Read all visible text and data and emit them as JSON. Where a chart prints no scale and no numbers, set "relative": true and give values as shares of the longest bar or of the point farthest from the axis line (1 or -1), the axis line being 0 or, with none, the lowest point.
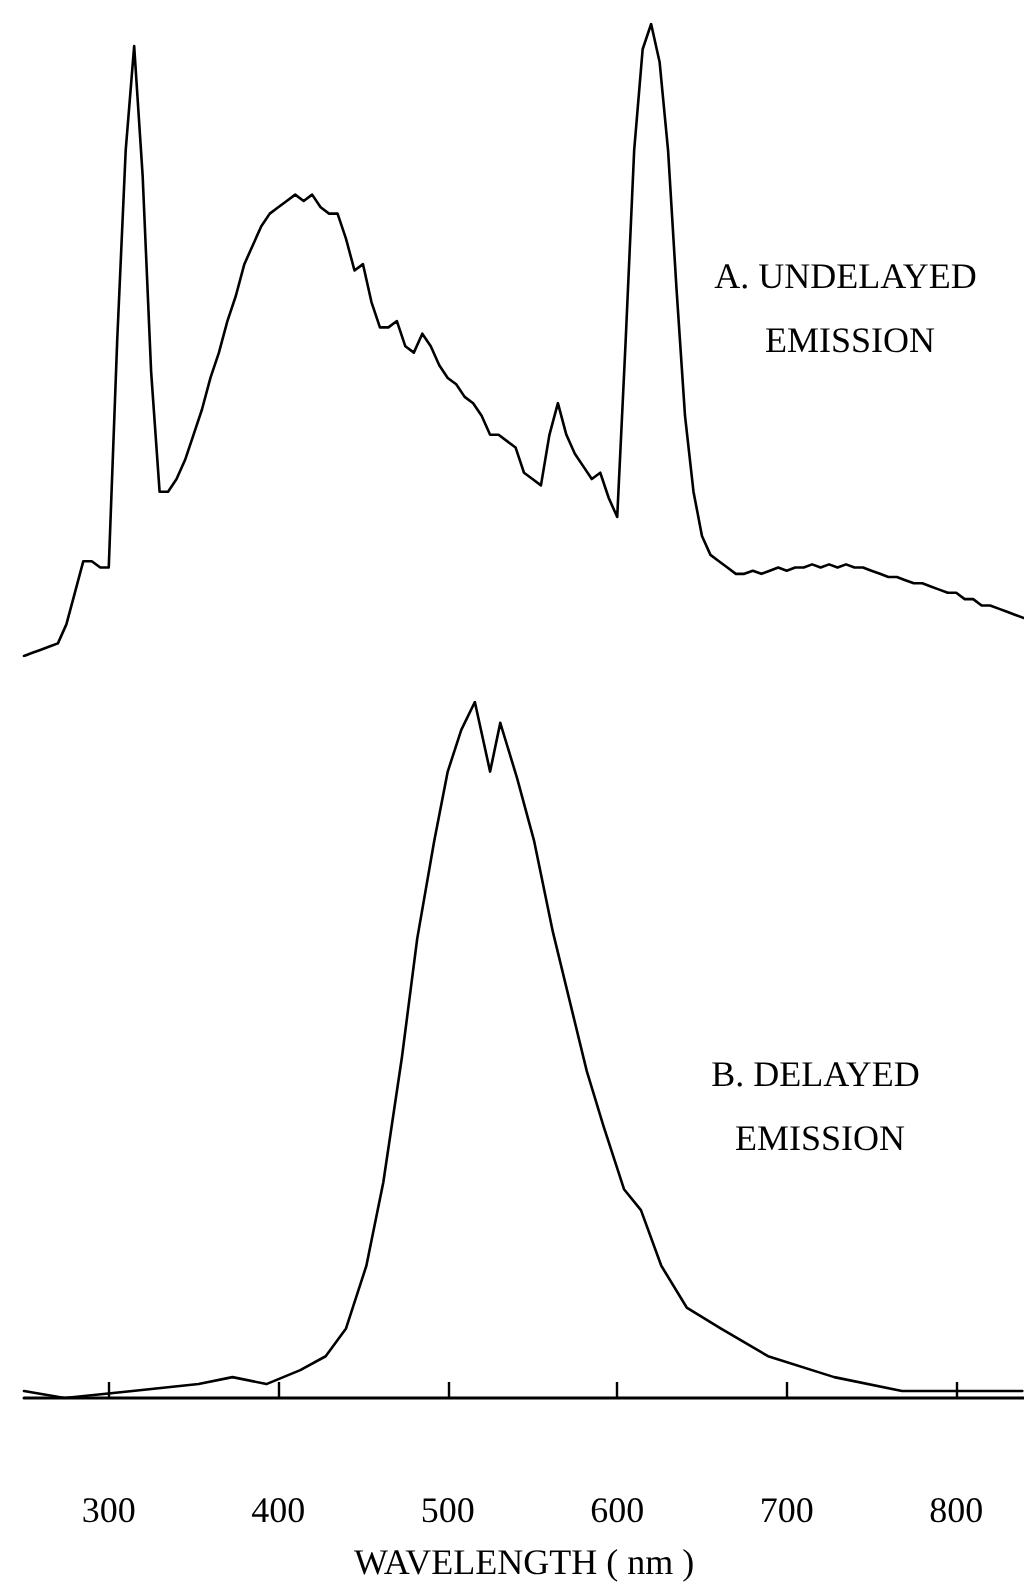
{
  "chart_data": [
    {
      "type": "line",
      "relative": true,
      "tick_labels": false,
      "marker": "none",
      "line_style": "solid",
      "annotations": [
        "A. UNDELAYED EMISSION"
      ],
      "categories": [
        null,
        null,
        null,
        null,
        null,
        null,
        null,
        null,
        null,
        null,
        null,
        null,
        null,
        null,
        null,
        null,
        null,
        null,
        null,
        null,
        null,
        null,
        null,
        null,
        null,
        null,
        null,
        null,
        null,
        null,
        null,
        null,
        null,
        null,
        null,
        null,
        null,
        null,
        null,
        null,
        null,
        null,
        null,
        null,
        null,
        null,
        null,
        null,
        null,
        null,
        null,
        null,
        null,
        null,
        null,
        null,
        null,
        null,
        null,
        null,
        null,
        null,
        null,
        null,
        null,
        null,
        null,
        null,
        null,
        null,
        null,
        null,
        null,
        null,
        null,
        null,
        null,
        null,
        null,
        null,
        null,
        null,
        null,
        null,
        null,
        null,
        null,
        null,
        null,
        null,
        null,
        null,
        null,
        null,
        null,
        null,
        null,
        null,
        null,
        null,
        null,
        null,
        null,
        null,
        null,
        null,
        null,
        null,
        null,
        null,
        null,
        null,
        null,
        null,
        null,
        null,
        null,
        null,
        null
      ],
      "series": [
        {
          "color": "#000000",
          "values": [
            0,
            0.005,
            0.01,
            0.015,
            0.02,
            0.05,
            0.1,
            0.15,
            0.15,
            0.14,
            0.14,
            0.5,
            0.8,
            0.965,
            0.76,
            0.45,
            0.26,
            0.26,
            0.28,
            0.31,
            0.35,
            0.39,
            0.44,
            0.48,
            0.53,
            0.57,
            0.62,
            0.65,
            0.68,
            0.7,
            0.71,
            0.72,
            0.73,
            0.72,
            0.73,
            0.71,
            0.7,
            0.7,
            0.66,
            0.61,
            0.62,
            0.56,
            0.52,
            0.52,
            0.53,
            0.49,
            0.48,
            0.51,
            0.49,
            0.46,
            0.44,
            0.43,
            0.41,
            0.4,
            0.38,
            0.35,
            0.35,
            0.34,
            0.33,
            0.29,
            0.28,
            0.27,
            0.35,
            0.4,
            0.35,
            0.32,
            0.3,
            0.28,
            0.29,
            0.25,
            0.22,
            0.5,
            0.8,
            0.96,
            1,
            0.94,
            0.8,
            0.58,
            0.38,
            0.26,
            0.19,
            0.16,
            0.15,
            0.14,
            0.13,
            0.13,
            0.135,
            0.13,
            0.135,
            0.14,
            0.135,
            0.14,
            0.14,
            0.145,
            0.14,
            0.145,
            0.14,
            0.145,
            0.14,
            0.14,
            0.135,
            0.13,
            0.125,
            0.125,
            0.12,
            0.115,
            0.115,
            0.11,
            0.105,
            0.1,
            0.1,
            0.09,
            0.09,
            0.08,
            0.08,
            0.075,
            0.07,
            0.065,
            0.06
          ]
        }
      ]
    },
    {
      "type": "line",
      "relative": true,
      "xlim": [
        250,
        840
      ],
      "xticks": [
        300,
        400,
        500,
        600,
        700,
        800
      ],
      "xlabel": "WAVELENGTH ( nm )",
      "tick_labels": "x",
      "marker": "none",
      "line_style": "solid",
      "annotations": [
        "B. DELAYED EMISSION"
      ],
      "series": [
        {
          "color": "#000000",
          "x": [
            250,
            274,
            314,
            353,
            373,
            393,
            413,
            428,
            440,
            452,
            462,
            473,
            482,
            492,
            500,
            508,
            516,
            525,
            531,
            541,
            551,
            562,
            582,
            592,
            604,
            614,
            626,
            641,
            661,
            689,
            728,
            768,
            807,
            839
          ],
          "values": [
            0.01,
            0,
            0.01,
            0.02,
            0.03,
            0.02,
            0.04,
            0.06,
            0.1,
            0.19,
            0.31,
            0.49,
            0.66,
            0.8,
            0.9,
            0.96,
            1,
            0.9,
            0.97,
            0.89,
            0.8,
            0.67,
            0.47,
            0.39,
            0.3,
            0.27,
            0.19,
            0.13,
            0.1,
            0.06,
            0.03,
            0.01,
            0.01,
            0.01
          ]
        }
      ]
    }
  ]
}
